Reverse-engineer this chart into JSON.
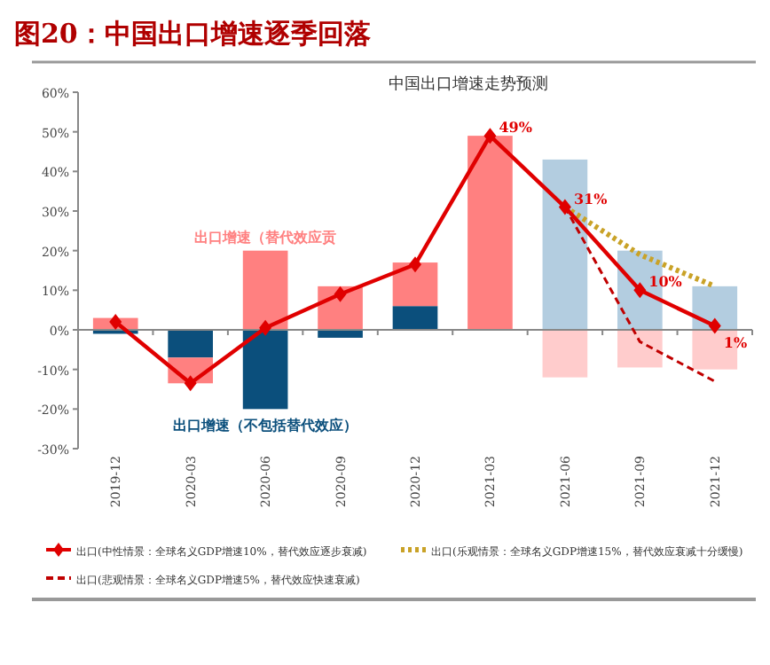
{
  "chart_data": {
    "type": "bar",
    "stacked": true,
    "title": "图20：中国出口增速逐季回落",
    "subtitle": "中国出口增速走势预测",
    "categories": [
      "2019-12",
      "2020-03",
      "2020-06",
      "2020-09",
      "2020-12",
      "2021-03",
      "2021-06",
      "2021-09",
      "2021-12"
    ],
    "ylim": [
      -30,
      60
    ],
    "yticks": [
      {
        "value": -30,
        "label": "-30%"
      },
      {
        "value": -20,
        "label": "-20%"
      },
      {
        "value": -10,
        "label": "-10%"
      },
      {
        "value": 0,
        "label": "0%"
      },
      {
        "value": 10,
        "label": "10%"
      },
      {
        "value": 20,
        "label": "20%"
      },
      {
        "value": 30,
        "label": "30%"
      },
      {
        "value": 40,
        "label": "40%"
      },
      {
        "value": 50,
        "label": "50%"
      },
      {
        "value": 60,
        "label": "60%"
      }
    ],
    "legend": "bottom",
    "series": [
      {
        "name": "出口增速（不包括替代效应）",
        "color": "#0b4f7c",
        "values": [
          -1,
          -7,
          -20,
          -2,
          6,
          null,
          null,
          null,
          null
        ]
      },
      {
        "name": "出口增速（替代效应贡",
        "color": "#ff8080",
        "values": [
          3,
          -6.5,
          20,
          11,
          11,
          49,
          null,
          null,
          null
        ]
      },
      {
        "color": "#b3cde0",
        "values": [
          null,
          null,
          null,
          null,
          null,
          null,
          43,
          20,
          11
        ]
      },
      {
        "color": "#ffcccc",
        "values": [
          null,
          null,
          null,
          null,
          null,
          null,
          -12,
          -9.5,
          -10
        ]
      },
      {
        "type": "line",
        "name": "出口(乐观情景：全球名义GDP增速15%，替代效应衰减十分缓慢)",
        "color": "#c9a227",
        "line_style": "dotted",
        "marker": "none",
        "values": [
          null,
          null,
          null,
          null,
          null,
          null,
          31,
          19,
          11
        ]
      },
      {
        "type": "line",
        "name": "出口(悲观情景：全球名义GDP增速5%，替代效应快速衰减)",
        "color": "#c00000",
        "line_style": "dashed",
        "marker": "none",
        "values": [
          null,
          null,
          null,
          null,
          null,
          null,
          31,
          -3,
          -13
        ]
      },
      {
        "type": "line",
        "name": "出口(中性情景：全球名义GDP增速10%，替代效应逐步衰减)",
        "color": "#e00000",
        "line_style": "solid",
        "marker": "diamond",
        "values": [
          2,
          -13.5,
          0.5,
          9,
          16.5,
          49,
          31,
          10,
          1
        ],
        "value_labels": [
          null,
          null,
          null,
          null,
          null,
          "49%",
          "31%",
          "10%",
          "1%"
        ]
      }
    ]
  }
}
